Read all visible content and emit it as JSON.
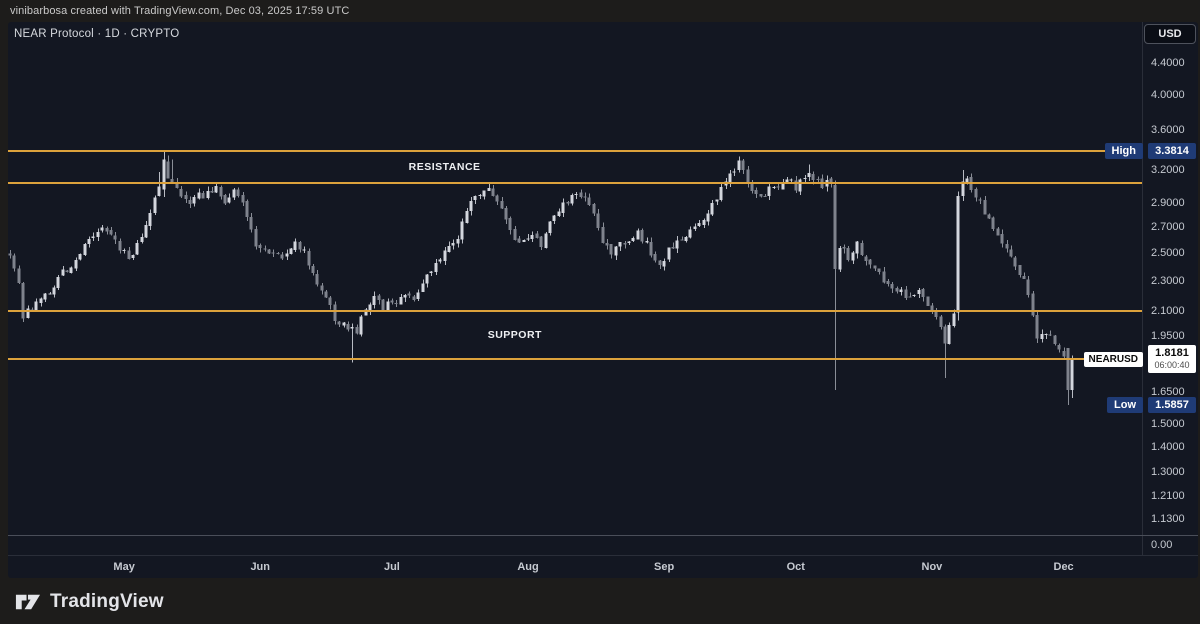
{
  "attribution": {
    "text": "vinibarbosa created with TradingView.com, Dec 03, 2025 17:59 UTC"
  },
  "header": {
    "symbol_title": "NEAR Protocol · 1D · CRYPTO",
    "currency_button": "USD"
  },
  "footer": {
    "logo_text": "TradingView"
  },
  "price_axis": {
    "ticks": [
      "4.4000",
      "4.0000",
      "3.6000",
      "3.2000",
      "2.9000",
      "2.7000",
      "2.5000",
      "2.3000",
      "2.1000",
      "1.9500",
      "1.6500",
      "1.5000",
      "1.4000",
      "1.3000",
      "1.2100",
      "1.1300"
    ],
    "sub_pane_tick": "0.00",
    "high_label": {
      "text": "High",
      "value": "3.3814"
    },
    "low_label": {
      "text": "Low",
      "value": "1.5857"
    },
    "last_price_label": {
      "symbol": "NEARUSD",
      "value": "1.8181",
      "countdown": "06:00:40"
    }
  },
  "time_axis": {
    "months": [
      {
        "label": "May",
        "day": 26
      },
      {
        "label": "Jun",
        "day": 57
      },
      {
        "label": "Jul",
        "day": 87
      },
      {
        "label": "Aug",
        "day": 118
      },
      {
        "label": "Sep",
        "day": 149
      },
      {
        "label": "Oct",
        "day": 179
      },
      {
        "label": "Nov",
        "day": 210
      },
      {
        "label": "Dec",
        "day": 240
      }
    ]
  },
  "colors": {
    "background": "#131722",
    "outer_background": "#1d1c1b",
    "level_orange": "#dca23c",
    "candle_up": "#d3d6dd",
    "candle_down": "#7f838d",
    "wick_up": "#b9bcc4",
    "wick_down": "#8a8e97",
    "axis_text": "#c6cad1",
    "high_low_chip": "#1f3b76",
    "last_price_chip": "#ffffff"
  },
  "chart_data": {
    "type": "candlestick",
    "symbol": "NEARUSD",
    "name": "NEAR Protocol",
    "timeframe": "1D",
    "exchange": "CRYPTO",
    "scale": "log",
    "high": 3.3814,
    "low": 1.5857,
    "last": 1.8181,
    "countdown": "06:00:40",
    "days": 243,
    "seed": 1337,
    "levels": [
      {
        "name": "resistance-zone-top-line",
        "price": 3.3814
      },
      {
        "name": "resistance-zone-bottom-line",
        "price": 3.08
      },
      {
        "name": "support-zone-top-line",
        "price": 2.1
      },
      {
        "name": "support-zone-bottom-line",
        "price": 1.82
      }
    ],
    "annotations": [
      {
        "text": "RESISTANCE",
        "day": 99,
        "price": 3.23
      },
      {
        "text": "SUPPORT",
        "day": 115,
        "price": 1.955
      }
    ],
    "anchors": [
      [
        0,
        2.5
      ],
      [
        2,
        2.28
      ],
      [
        3,
        2.06
      ],
      [
        5,
        2.12
      ],
      [
        9,
        2.22
      ],
      [
        11,
        2.32
      ],
      [
        15,
        2.43
      ],
      [
        19,
        2.65
      ],
      [
        22,
        2.7
      ],
      [
        25,
        2.55
      ],
      [
        27,
        2.46
      ],
      [
        30,
        2.62
      ],
      [
        34,
        3.02
      ],
      [
        35,
        3.28
      ],
      [
        37,
        3.12
      ],
      [
        39,
        2.98
      ],
      [
        41,
        2.92
      ],
      [
        44,
        2.98
      ],
      [
        47,
        3.06
      ],
      [
        49,
        2.9
      ],
      [
        51,
        3.0
      ],
      [
        54,
        2.8
      ],
      [
        56,
        2.58
      ],
      [
        59,
        2.47
      ],
      [
        62,
        2.46
      ],
      [
        65,
        2.58
      ],
      [
        67,
        2.5
      ],
      [
        69,
        2.32
      ],
      [
        72,
        2.18
      ],
      [
        74,
        2.06
      ],
      [
        77,
        1.99
      ],
      [
        79,
        1.97
      ],
      [
        81,
        2.12
      ],
      [
        83,
        2.22
      ],
      [
        85,
        2.13
      ],
      [
        88,
        2.17
      ],
      [
        90,
        2.23
      ],
      [
        92,
        2.19
      ],
      [
        95,
        2.33
      ],
      [
        98,
        2.46
      ],
      [
        102,
        2.62
      ],
      [
        105,
        2.88
      ],
      [
        107,
        3.0
      ],
      [
        109,
        3.06
      ],
      [
        112,
        2.88
      ],
      [
        114,
        2.66
      ],
      [
        116,
        2.58
      ],
      [
        118,
        2.63
      ],
      [
        121,
        2.57
      ],
      [
        124,
        2.78
      ],
      [
        127,
        2.93
      ],
      [
        130,
        2.99
      ],
      [
        133,
        2.83
      ],
      [
        135,
        2.6
      ],
      [
        137,
        2.5
      ],
      [
        140,
        2.58
      ],
      [
        143,
        2.66
      ],
      [
        146,
        2.51
      ],
      [
        148,
        2.4
      ],
      [
        151,
        2.56
      ],
      [
        155,
        2.68
      ],
      [
        158,
        2.79
      ],
      [
        161,
        2.96
      ],
      [
        164,
        3.14
      ],
      [
        166,
        3.26
      ],
      [
        169,
        3.02
      ],
      [
        171,
        2.94
      ],
      [
        174,
        3.06
      ],
      [
        177,
        3.1
      ],
      [
        179,
        3.04
      ],
      [
        182,
        3.17
      ],
      [
        185,
        3.06
      ],
      [
        187,
        3.1
      ],
      [
        188,
        2.6
      ],
      [
        191,
        2.45
      ],
      [
        193,
        2.56
      ],
      [
        196,
        2.42
      ],
      [
        199,
        2.31
      ],
      [
        201,
        2.26
      ],
      [
        204,
        2.19
      ],
      [
        207,
        2.21
      ],
      [
        210,
        2.12
      ],
      [
        212,
        2.0
      ],
      [
        213,
        1.9
      ],
      [
        215,
        2.08
      ],
      [
        216,
        2.95
      ],
      [
        218,
        3.08
      ],
      [
        220,
        2.96
      ],
      [
        222,
        2.81
      ],
      [
        225,
        2.66
      ],
      [
        227,
        2.53
      ],
      [
        229,
        2.43
      ],
      [
        231,
        2.31
      ],
      [
        233,
        2.06
      ],
      [
        234,
        1.96
      ],
      [
        237,
        1.93
      ],
      [
        239,
        1.89
      ],
      [
        241,
        1.76
      ],
      [
        242,
        1.8181
      ]
    ],
    "overrides": {
      "34": {
        "h": 3.18
      },
      "35": {
        "o": 3.02,
        "c": 3.3,
        "h": 3.3814,
        "l": 2.95
      },
      "36": {
        "o": 3.28,
        "c": 3.12,
        "h": 3.34
      },
      "37": {
        "h": 3.3
      },
      "78": {
        "l": 1.8
      },
      "166": {
        "h": 3.33
      },
      "182": {
        "h": 3.25
      },
      "188": {
        "o": 3.06,
        "h": 3.1,
        "l": 1.66,
        "c": 2.38
      },
      "213": {
        "l": 1.72
      },
      "216": {
        "o": 2.09,
        "c": 2.96,
        "l": 2.04
      },
      "217": {
        "o": 2.96,
        "c": 3.09,
        "h": 3.2
      },
      "241": {
        "o": 1.88,
        "c": 1.66,
        "l": 1.5857
      },
      "242": {
        "o": 1.66,
        "c": 1.8181,
        "l": 1.62,
        "h": 1.84
      }
    }
  }
}
